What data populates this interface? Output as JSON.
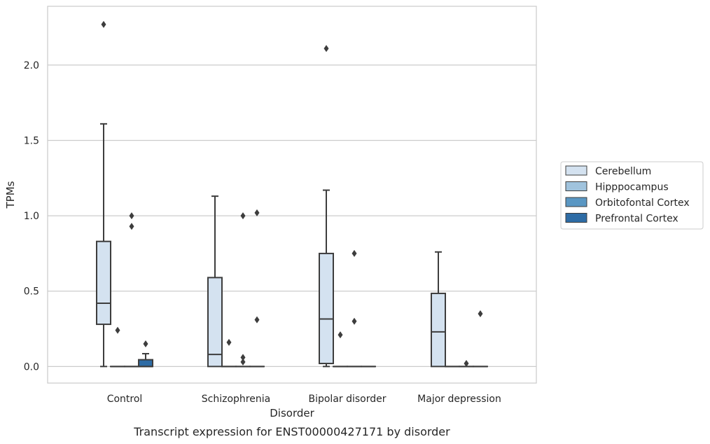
{
  "chart_data": {
    "type": "box",
    "caption": "Transcript expression for ENST00000427171 by disorder",
    "xlabel": "Disorder",
    "ylabel": "TPMs",
    "ylim": [
      -0.11,
      2.39
    ],
    "yticks": [
      "0.0",
      "0.5",
      "1.0",
      "1.5",
      "2.0"
    ],
    "ytick_values": [
      0.0,
      0.5,
      1.0,
      1.5,
      2.0
    ],
    "grid": "horizontal",
    "legend_position": "right",
    "categories": [
      "Control",
      "Schizophrenia",
      "Bipolar disorder",
      "Major depression"
    ],
    "series": [
      {
        "name": "Cerebellum",
        "color": "#d4e2f0",
        "boxes": [
          {
            "whislo": 0.0,
            "q1": 0.28,
            "med": 0.42,
            "q3": 0.83,
            "whishi": 1.61,
            "fliers": [
              2.27
            ]
          },
          {
            "whislo": 0.0,
            "q1": 0.0,
            "med": 0.08,
            "q3": 0.59,
            "whishi": 1.13,
            "fliers": []
          },
          {
            "whislo": 0.0,
            "q1": 0.02,
            "med": 0.315,
            "q3": 0.75,
            "whishi": 1.17,
            "fliers": [
              2.11
            ]
          },
          {
            "whislo": 0.0,
            "q1": 0.0,
            "med": 0.23,
            "q3": 0.485,
            "whishi": 0.76,
            "fliers": []
          }
        ]
      },
      {
        "name": "Hipppocampus",
        "color": "#a0c3dd",
        "boxes": [
          {
            "whislo": 0.0,
            "q1": 0.0,
            "med": 0.0,
            "q3": 0.0,
            "whishi": 0.0,
            "fliers": [
              0.24
            ]
          },
          {
            "whislo": 0.0,
            "q1": 0.0,
            "med": 0.0,
            "q3": 0.0,
            "whishi": 0.0,
            "fliers": [
              0.16
            ]
          },
          {
            "whislo": 0.0,
            "q1": 0.0,
            "med": 0.0,
            "q3": 0.0,
            "whishi": 0.0,
            "fliers": [
              0.21
            ]
          },
          {
            "whislo": 0.0,
            "q1": 0.0,
            "med": 0.0,
            "q3": 0.0,
            "whishi": 0.0,
            "fliers": []
          }
        ]
      },
      {
        "name": "Orbitofontal Cortex",
        "color": "#5a97c3",
        "boxes": [
          {
            "whislo": 0.0,
            "q1": 0.0,
            "med": 0.0,
            "q3": 0.0,
            "whishi": 0.0,
            "fliers": [
              1.0,
              0.93
            ]
          },
          {
            "whislo": 0.0,
            "q1": 0.0,
            "med": 0.0,
            "q3": 0.0,
            "whishi": 0.0,
            "fliers": [
              1.0,
              0.06,
              0.03
            ]
          },
          {
            "whislo": 0.0,
            "q1": 0.0,
            "med": 0.0,
            "q3": 0.0,
            "whishi": 0.0,
            "fliers": [
              0.75,
              0.3
            ]
          },
          {
            "whislo": 0.0,
            "q1": 0.0,
            "med": 0.0,
            "q3": 0.0,
            "whishi": 0.0,
            "fliers": [
              0.02
            ]
          }
        ]
      },
      {
        "name": "Prefrontal Cortex",
        "color": "#2e6ca5",
        "boxes": [
          {
            "whislo": 0.0,
            "q1": 0.0,
            "med": 0.0,
            "q3": 0.045,
            "whishi": 0.085,
            "fliers": [
              0.15
            ]
          },
          {
            "whislo": 0.0,
            "q1": 0.0,
            "med": 0.0,
            "q3": 0.0,
            "whishi": 0.0,
            "fliers": [
              1.02,
              0.31
            ]
          },
          {
            "whislo": 0.0,
            "q1": 0.0,
            "med": 0.0,
            "q3": 0.0,
            "whishi": 0.0,
            "fliers": []
          },
          {
            "whislo": 0.0,
            "q1": 0.0,
            "med": 0.0,
            "q3": 0.0,
            "whishi": 0.0,
            "fliers": [
              0.35
            ]
          }
        ]
      }
    ]
  }
}
